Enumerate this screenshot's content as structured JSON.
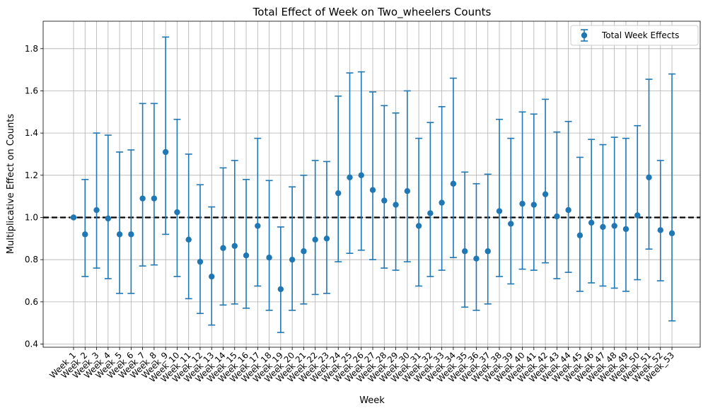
{
  "chart_data": {
    "type": "scatter",
    "title": "Total Effect of Week on Two_wheelers Counts",
    "xlabel": "Week",
    "ylabel": "Multiplicative Effect on Counts",
    "ylim": [
      0.385,
      1.93
    ],
    "yticks": [
      "0.4",
      "0.6",
      "0.8",
      "1.0",
      "1.2",
      "1.4",
      "1.6",
      "1.8"
    ],
    "grid": true,
    "legend_position": "top-right",
    "reference_line": {
      "y": 1.0,
      "style": "dashed",
      "color": "#000000"
    },
    "categories": [
      "Week_1",
      "Week_2",
      "Week_3",
      "Week_4",
      "Week_5",
      "Week_6",
      "Week_7",
      "Week_8",
      "Week_9",
      "Week_10",
      "Week_11",
      "Week_12",
      "Week_13",
      "Week_14",
      "Week_15",
      "Week_16",
      "Week_17",
      "Week_18",
      "Week_19",
      "Week_20",
      "Week_21",
      "Week_22",
      "Week_23",
      "Week_24",
      "Week_25",
      "Week_26",
      "Week_27",
      "Week_28",
      "Week_29",
      "Week_30",
      "Week_31",
      "Week_32",
      "Week_33",
      "Week_34",
      "Week_35",
      "Week_36",
      "Week_37",
      "Week_38",
      "Week_39",
      "Week_40",
      "Week_41",
      "Week_42",
      "Week_43",
      "Week_44",
      "Week_45",
      "Week_46",
      "Week_47",
      "Week_48",
      "Week_49",
      "Week_50",
      "Week_51",
      "Week_52",
      "Week_53"
    ],
    "series": [
      {
        "name": "Total Week Effects",
        "color": "#1f77b4",
        "values": [
          1.0,
          0.92,
          1.035,
          0.995,
          0.92,
          0.92,
          1.09,
          1.09,
          1.31,
          1.025,
          0.895,
          0.79,
          0.72,
          0.855,
          0.865,
          0.82,
          0.96,
          0.81,
          0.66,
          0.8,
          0.84,
          0.895,
          0.9,
          1.115,
          1.19,
          1.2,
          1.13,
          1.08,
          1.06,
          1.125,
          0.96,
          1.02,
          1.07,
          1.16,
          0.84,
          0.805,
          0.84,
          1.03,
          0.97,
          1.065,
          1.06,
          1.11,
          1.005,
          1.035,
          0.915,
          0.975,
          0.955,
          0.96,
          0.945,
          1.01,
          1.19,
          0.94,
          0.925
        ],
        "lower": [
          1.0,
          0.72,
          0.76,
          0.71,
          0.64,
          0.64,
          0.77,
          0.775,
          0.92,
          0.72,
          0.615,
          0.545,
          0.49,
          0.585,
          0.59,
          0.57,
          0.675,
          0.56,
          0.455,
          0.56,
          0.59,
          0.635,
          0.64,
          0.79,
          0.83,
          0.845,
          0.8,
          0.76,
          0.75,
          0.79,
          0.675,
          0.72,
          0.75,
          0.81,
          0.575,
          0.56,
          0.59,
          0.72,
          0.685,
          0.755,
          0.75,
          0.785,
          0.71,
          0.74,
          0.65,
          0.69,
          0.675,
          0.665,
          0.65,
          0.705,
          0.85,
          0.7,
          0.51
        ],
        "upper": [
          1.0,
          1.18,
          1.4,
          1.39,
          1.31,
          1.32,
          1.54,
          1.54,
          1.855,
          1.465,
          1.3,
          1.155,
          1.05,
          1.235,
          1.27,
          1.18,
          1.375,
          1.175,
          0.955,
          1.145,
          1.2,
          1.27,
          1.265,
          1.575,
          1.685,
          1.69,
          1.595,
          1.53,
          1.495,
          1.6,
          1.375,
          1.45,
          1.525,
          1.66,
          1.215,
          1.16,
          1.205,
          1.465,
          1.375,
          1.5,
          1.49,
          1.56,
          1.405,
          1.455,
          1.285,
          1.37,
          1.345,
          1.38,
          1.375,
          1.435,
          1.655,
          1.27,
          1.68
        ]
      }
    ]
  }
}
